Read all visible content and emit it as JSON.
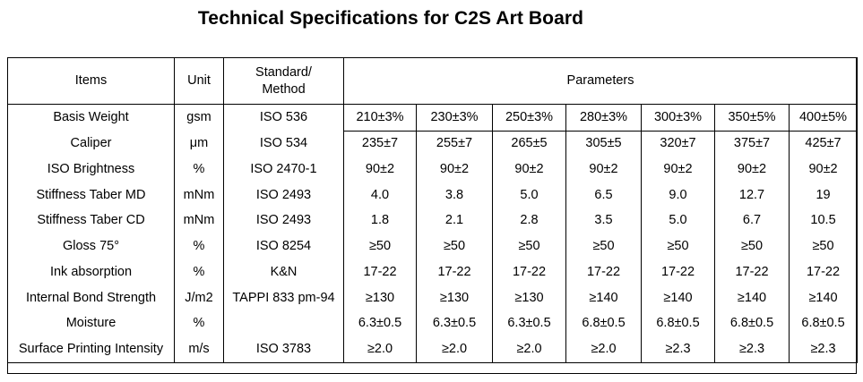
{
  "title": "Technical Specifications for C2S Art Board",
  "table": {
    "headers": {
      "items": "Items",
      "unit": "Unit",
      "standard_line1": "Standard/",
      "standard_line2": "Method",
      "parameters": "Parameters"
    },
    "rows": [
      {
        "item": "Basis Weight",
        "unit": "gsm",
        "standard": "ISO 536",
        "values": [
          "210±3%",
          "230±3%",
          "250±3%",
          "280±3%",
          "300±3%",
          "350±5%",
          "400±5%"
        ]
      },
      {
        "item": "Caliper",
        "unit": "μm",
        "standard": "ISO 534",
        "values": [
          "235±7",
          "255±7",
          "265±5",
          "305±5",
          "320±7",
          "375±7",
          "425±7"
        ]
      },
      {
        "item": "ISO Brightness",
        "unit": "%",
        "standard": "ISO 2470-1",
        "values": [
          "90±2",
          "90±2",
          "90±2",
          "90±2",
          "90±2",
          "90±2",
          "90±2"
        ]
      },
      {
        "item": "Stiffness Taber MD",
        "unit": "mNm",
        "standard": "ISO 2493",
        "values": [
          "4.0",
          "3.8",
          "5.0",
          "6.5",
          "9.0",
          "12.7",
          "19"
        ]
      },
      {
        "item": "Stiffness Taber CD",
        "unit": "mNm",
        "standard": "ISO 2493",
        "values": [
          "1.8",
          "2.1",
          "2.8",
          "3.5",
          "5.0",
          "6.7",
          "10.5"
        ]
      },
      {
        "item": "Gloss 75°",
        "unit": "%",
        "standard": "ISO 8254",
        "values": [
          "≥50",
          "≥50",
          "≥50",
          "≥50",
          "≥50",
          "≥50",
          "≥50"
        ]
      },
      {
        "item": "Ink absorption",
        "unit": "%",
        "standard": "K&N",
        "values": [
          "17-22",
          "17-22",
          "17-22",
          "17-22",
          "17-22",
          "17-22",
          "17-22"
        ]
      },
      {
        "item": "Internal Bond Strength",
        "unit": "J/m2",
        "standard": "TAPPI 833 pm-94",
        "values": [
          "≥130",
          "≥130",
          "≥130",
          "≥140",
          "≥140",
          "≥140",
          "≥140"
        ]
      },
      {
        "item": "Moisture",
        "unit": "%",
        "standard": "",
        "values": [
          "6.3±0.5",
          "6.3±0.5",
          "6.3±0.5",
          "6.8±0.5",
          "6.8±0.5",
          "6.8±0.5",
          "6.8±0.5"
        ]
      },
      {
        "item": "Surface Printing Intensity",
        "unit": "m/s",
        "standard": "ISO 3783",
        "values": [
          "≥2.0",
          "≥2.0",
          "≥2.0",
          "≥2.0",
          "≥2.3",
          "≥2.3",
          "≥2.3"
        ]
      }
    ]
  }
}
